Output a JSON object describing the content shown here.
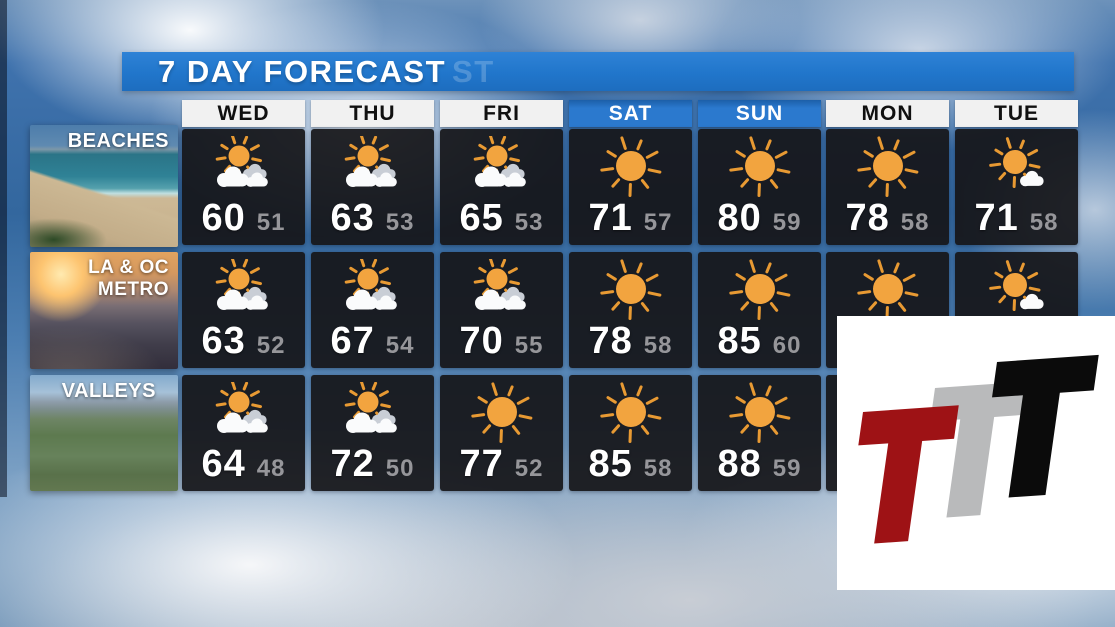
{
  "title": "7 DAY FORECAST",
  "title_ghost": "ST",
  "days": [
    {
      "label": "WED",
      "highlighted": false
    },
    {
      "label": "THU",
      "highlighted": false
    },
    {
      "label": "FRI",
      "highlighted": false
    },
    {
      "label": "SAT",
      "highlighted": true
    },
    {
      "label": "SUN",
      "highlighted": true
    },
    {
      "label": "MON",
      "highlighted": false
    },
    {
      "label": "TUE",
      "highlighted": false
    }
  ],
  "regions": [
    {
      "name": "BEACHES",
      "label_lines": [
        "BEACHES"
      ],
      "cells": [
        {
          "day": "WED",
          "icon": "partly-cloudy",
          "hi": "60",
          "lo": "51"
        },
        {
          "day": "THU",
          "icon": "partly-cloudy",
          "hi": "63",
          "lo": "53"
        },
        {
          "day": "FRI",
          "icon": "partly-cloudy",
          "hi": "65",
          "lo": "53"
        },
        {
          "day": "SAT",
          "icon": "sunny",
          "hi": "71",
          "lo": "57"
        },
        {
          "day": "SUN",
          "icon": "sunny",
          "hi": "80",
          "lo": "59"
        },
        {
          "day": "MON",
          "icon": "sunny",
          "hi": "78",
          "lo": "58"
        },
        {
          "day": "TUE",
          "icon": "mostly-sunny",
          "hi": "71",
          "lo": "58"
        }
      ]
    },
    {
      "name": "LA & OC METRO",
      "label_lines": [
        "LA & OC",
        "METRO"
      ],
      "cells": [
        {
          "day": "WED",
          "icon": "partly-cloudy",
          "hi": "63",
          "lo": "52"
        },
        {
          "day": "THU",
          "icon": "partly-cloudy",
          "hi": "67",
          "lo": "54"
        },
        {
          "day": "FRI",
          "icon": "partly-cloudy",
          "hi": "70",
          "lo": "55"
        },
        {
          "day": "SAT",
          "icon": "sunny",
          "hi": "78",
          "lo": "58"
        },
        {
          "day": "SUN",
          "icon": "sunny",
          "hi": "85",
          "lo": "60"
        },
        {
          "day": "MON",
          "icon": "sunny",
          "hi": "",
          "lo": ""
        },
        {
          "day": "TUE",
          "icon": "mostly-sunny",
          "hi": "",
          "lo": ""
        }
      ]
    },
    {
      "name": "VALLEYS",
      "label_lines": [
        "VALLEYS"
      ],
      "cells": [
        {
          "day": "WED",
          "icon": "partly-cloudy",
          "hi": "64",
          "lo": "48"
        },
        {
          "day": "THU",
          "icon": "partly-cloudy",
          "hi": "72",
          "lo": "50"
        },
        {
          "day": "FRI",
          "icon": "sunny",
          "hi": "77",
          "lo": "52"
        },
        {
          "day": "SAT",
          "icon": "sunny",
          "hi": "85",
          "lo": "58"
        },
        {
          "day": "SUN",
          "icon": "sunny",
          "hi": "88",
          "lo": "59"
        },
        {
          "day": "MON",
          "icon": null,
          "hi": "",
          "lo": ""
        },
        {
          "day": "TUE",
          "icon": null,
          "hi": "",
          "lo": ""
        }
      ]
    }
  ],
  "logo": {
    "letters": [
      "T",
      "T",
      "T"
    ],
    "red": "#9E1215",
    "gray": "#B9BABB",
    "black": "#0B0B0B",
    "background": "#FFFFFF"
  },
  "colors": {
    "banner_blue": "#2176CB",
    "weekend_blue": "#2B79CE",
    "header_bg": "#F1F1F1",
    "header_text": "#101010",
    "cell_bg": "#1B1B1E",
    "hi_temp": "#FFFFFF",
    "lo_temp": "#96969A",
    "sun": "#F2A43F",
    "sun_ray": "#E89A33",
    "cloud_white": "#FAFBFC",
    "cloud_gray": "#C9CED6"
  },
  "chart_data": {
    "type": "table",
    "title": "7 DAY FORECAST",
    "columns": [
      "WED",
      "THU",
      "FRI",
      "SAT",
      "SUN",
      "MON",
      "TUE"
    ],
    "rows": [
      {
        "region": "BEACHES",
        "high": [
          60,
          63,
          65,
          71,
          80,
          78,
          71
        ],
        "low": [
          51,
          53,
          53,
          57,
          59,
          58,
          58
        ],
        "conditions": [
          "partly-cloudy",
          "partly-cloudy",
          "partly-cloudy",
          "sunny",
          "sunny",
          "sunny",
          "mostly-sunny"
        ]
      },
      {
        "region": "LA & OC METRO",
        "high": [
          63,
          67,
          70,
          78,
          85,
          null,
          null
        ],
        "low": [
          52,
          54,
          55,
          58,
          60,
          null,
          null
        ],
        "conditions": [
          "partly-cloudy",
          "partly-cloudy",
          "partly-cloudy",
          "sunny",
          "sunny",
          "sunny",
          "mostly-sunny"
        ]
      },
      {
        "region": "VALLEYS",
        "high": [
          64,
          72,
          77,
          85,
          88,
          null,
          null
        ],
        "low": [
          48,
          50,
          52,
          58,
          59,
          null,
          null
        ],
        "conditions": [
          "partly-cloudy",
          "partly-cloudy",
          "sunny",
          "sunny",
          "sunny",
          null,
          null
        ]
      }
    ]
  }
}
